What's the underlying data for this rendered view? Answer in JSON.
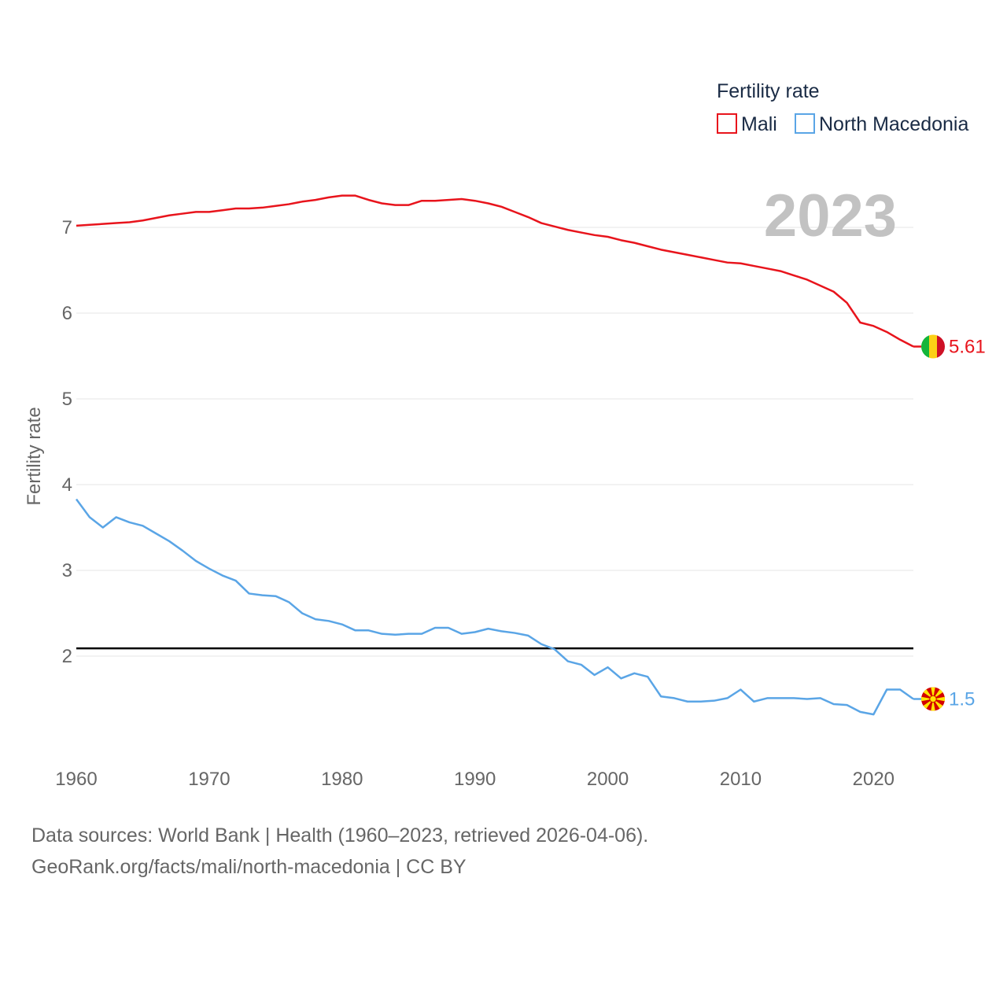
{
  "chart_data": {
    "type": "line",
    "legend_title": "Fertility rate",
    "ylabel": "Fertility rate",
    "xlabel": "",
    "current_year": "2023",
    "xlim": [
      1960,
      2023
    ],
    "ylim": [
      1.0,
      7.8
    ],
    "y_ticks": [
      2,
      3,
      4,
      5,
      6,
      7
    ],
    "x_ticks": [
      1960,
      1970,
      1980,
      1990,
      2000,
      2010,
      2020
    ],
    "reference_line": 2.1,
    "x": [
      1960,
      1961,
      1962,
      1963,
      1964,
      1965,
      1966,
      1967,
      1968,
      1969,
      1970,
      1971,
      1972,
      1973,
      1974,
      1975,
      1976,
      1977,
      1978,
      1979,
      1980,
      1981,
      1982,
      1983,
      1984,
      1985,
      1986,
      1987,
      1988,
      1989,
      1990,
      1991,
      1992,
      1993,
      1994,
      1995,
      1996,
      1997,
      1998,
      1999,
      2000,
      2001,
      2002,
      2003,
      2004,
      2005,
      2006,
      2007,
      2008,
      2009,
      2010,
      2011,
      2012,
      2013,
      2014,
      2015,
      2016,
      2017,
      2018,
      2019,
      2020,
      2021,
      2022,
      2023
    ],
    "series": [
      {
        "name": "Mali",
        "color": "#e8141c",
        "end_label": "5.61",
        "values": [
          7.02,
          7.03,
          7.04,
          7.05,
          7.06,
          7.08,
          7.11,
          7.14,
          7.16,
          7.18,
          7.18,
          7.2,
          7.22,
          7.22,
          7.23,
          7.25,
          7.27,
          7.3,
          7.32,
          7.35,
          7.37,
          7.37,
          7.32,
          7.28,
          7.26,
          7.26,
          7.31,
          7.31,
          7.32,
          7.33,
          7.31,
          7.28,
          7.24,
          7.18,
          7.12,
          7.05,
          7.01,
          6.97,
          6.94,
          6.91,
          6.89,
          6.85,
          6.82,
          6.78,
          6.74,
          6.71,
          6.68,
          6.65,
          6.62,
          6.59,
          6.58,
          6.55,
          6.52,
          6.49,
          6.44,
          6.39,
          6.32,
          6.25,
          6.12,
          5.89,
          5.85,
          5.78,
          5.69,
          5.61
        ]
      },
      {
        "name": "North Macedonia",
        "color": "#5aa5e6",
        "end_label": "1.5",
        "values": [
          3.83,
          3.62,
          3.5,
          3.62,
          3.56,
          3.52,
          3.43,
          3.34,
          3.23,
          3.11,
          3.02,
          2.94,
          2.88,
          2.73,
          2.71,
          2.7,
          2.63,
          2.5,
          2.43,
          2.41,
          2.37,
          2.3,
          2.3,
          2.26,
          2.25,
          2.26,
          2.26,
          2.33,
          2.33,
          2.26,
          2.28,
          2.32,
          2.29,
          2.27,
          2.24,
          2.14,
          2.08,
          1.94,
          1.9,
          1.78,
          1.87,
          1.74,
          1.8,
          1.76,
          1.53,
          1.51,
          1.47,
          1.47,
          1.48,
          1.51,
          1.61,
          1.47,
          1.51,
          1.51,
          1.51,
          1.5,
          1.51,
          1.44,
          1.43,
          1.35,
          1.32,
          1.61,
          1.61,
          1.5
        ]
      }
    ]
  },
  "footer": {
    "source_line": "Data sources: World Bank | Health (1960–2023, retrieved 2026-04-06).",
    "credit_line": "GeoRank.org/facts/mali/north-macedonia | CC BY"
  },
  "icons": {
    "mali_flag": "mali-flag-icon",
    "macedonia_flag": "north-macedonia-flag-icon"
  }
}
